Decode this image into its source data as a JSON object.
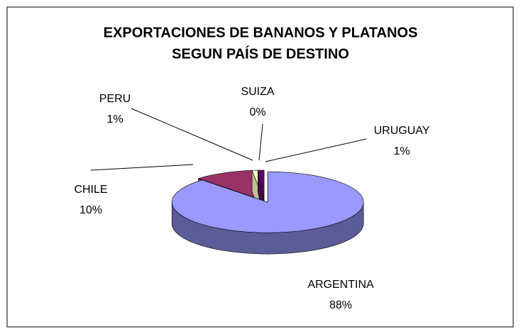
{
  "chart_data": {
    "type": "pie3d",
    "title": [
      "EXPORTACIONES DE BANANOS Y PLATANOS",
      "SEGUN PAÍS DE DESTINO"
    ],
    "categories": [
      "ARGENTINA",
      "CHILE",
      "PERU",
      "SUIZA",
      "URUGUAY"
    ],
    "values": [
      88,
      10,
      1,
      0,
      1
    ],
    "value_labels": [
      "88%",
      "10%",
      "1%",
      "0%",
      "1%"
    ],
    "colors": [
      "#9999FF",
      "#993366",
      "#FFFFCC",
      "#CCFFFF",
      "#660066"
    ]
  }
}
